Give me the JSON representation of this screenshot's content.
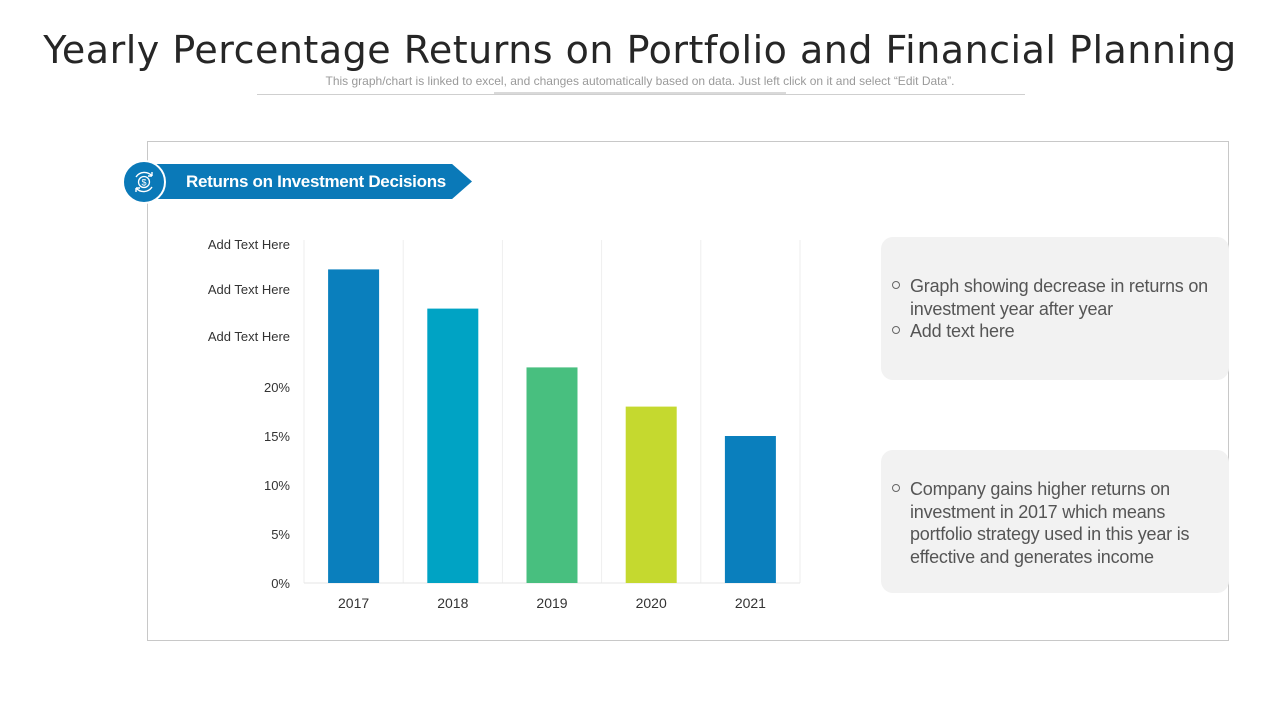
{
  "page": {
    "title": "Yearly Percentage Returns on Portfolio and Financial Planning",
    "subtitle": "This graph/chart is linked to excel, and changes automatically based on data. Just left click on it and select “Edit Data”."
  },
  "banner": {
    "label": "Returns on Investment Decisions",
    "icon": "dollar-cycle-icon",
    "color": "#0a79b8"
  },
  "chart_data": {
    "type": "bar",
    "categories": [
      "2017",
      "2018",
      "2019",
      "2020",
      "2021"
    ],
    "values": [
      32,
      28,
      22,
      18,
      15
    ],
    "colors": [
      "#0a7fbd",
      "#00a3c4",
      "#48bf7f",
      "#c5d92f",
      "#0a7fbd"
    ],
    "y_tick_labels": [
      "0%",
      "5%",
      "10%",
      "15%",
      "20%",
      "Add Text Here",
      "Add Text Here",
      "Add Text Here"
    ],
    "y_tick_values": [
      0,
      5,
      10,
      15,
      20,
      25,
      30,
      35
    ],
    "ylim": [
      0,
      35
    ],
    "grid": "vertical",
    "legend": "none",
    "title": "",
    "xlabel": "",
    "ylabel": ""
  },
  "notes": [
    {
      "items": [
        "Graph showing decrease in returns on investment year after year",
        "Add text here"
      ]
    },
    {
      "items": [
        "Company gains higher returns on investment in 2017 which means portfolio strategy used in this year is effective and generates income"
      ]
    }
  ]
}
